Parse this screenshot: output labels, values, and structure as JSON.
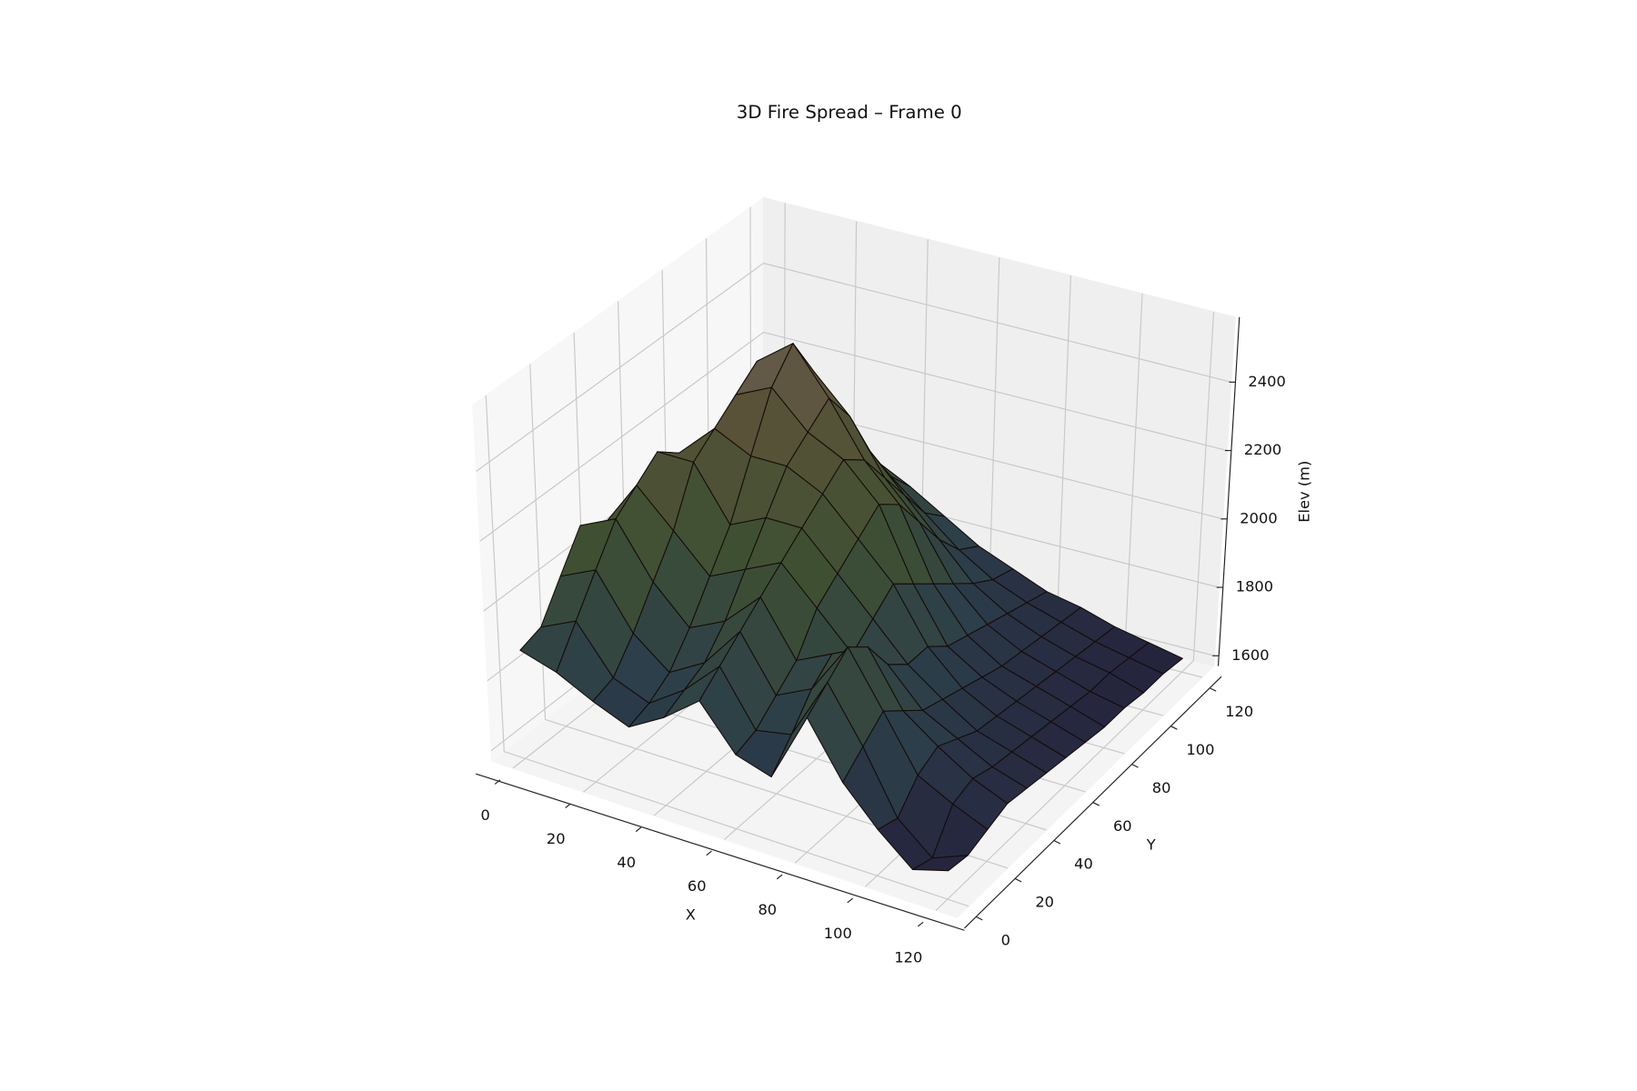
{
  "chart_data": {
    "type": "surface3d",
    "title": "3D Fire Spread – Frame 0",
    "xlabel": "X",
    "ylabel": "Y",
    "zlabel": "Elev (m)",
    "x": [
      0,
      10,
      20,
      30,
      40,
      50,
      60,
      70,
      80,
      90,
      100,
      110,
      120
    ],
    "y": [
      0,
      10,
      20,
      30,
      40,
      50,
      60,
      70,
      80,
      90,
      100,
      110,
      120
    ],
    "z": [
      [
        1880,
        1850,
        1800,
        1760,
        1820,
        1900,
        1780,
        1750,
        1950,
        1800,
        1700,
        1620,
        1650
      ],
      [
        1900,
        1950,
        1820,
        1780,
        1850,
        1950,
        1800,
        1820,
        2000,
        1850,
        1680,
        1600,
        1640
      ],
      [
        2000,
        2050,
        1900,
        1820,
        1880,
        2000,
        1850,
        1900,
        2050,
        1900,
        1750,
        1700,
        1660
      ],
      [
        2100,
        2150,
        2000,
        1900,
        1950,
        2050,
        1900,
        1950,
        2000,
        1850,
        1780,
        1720,
        1680
      ],
      [
        2050,
        2200,
        2100,
        2000,
        2050,
        2100,
        2000,
        1900,
        1900,
        1800,
        1750,
        1700,
        1670
      ],
      [
        2000,
        2250,
        2250,
        2100,
        2150,
        2150,
        2050,
        1950,
        1850,
        1780,
        1720,
        1690,
        1660
      ],
      [
        1950,
        2200,
        2300,
        2250,
        2250,
        2200,
        2100,
        2000,
        1850,
        1760,
        1710,
        1680,
        1650
      ],
      [
        1900,
        2150,
        2350,
        2400,
        2300,
        2250,
        2150,
        1950,
        1800,
        1740,
        1700,
        1670,
        1640
      ],
      [
        1850,
        2100,
        2400,
        2480,
        2350,
        2200,
        2100,
        1900,
        1780,
        1720,
        1690,
        1660,
        1630
      ],
      [
        1800,
        2050,
        2300,
        2350,
        2250,
        2100,
        2000,
        1850,
        1760,
        1710,
        1680,
        1650,
        1630
      ],
      [
        1750,
        1950,
        2150,
        2200,
        2100,
        2000,
        1900,
        1800,
        1740,
        1700,
        1670,
        1650,
        1620
      ],
      [
        1700,
        1850,
        2000,
        2050,
        1980,
        1900,
        1820,
        1760,
        1720,
        1690,
        1660,
        1640,
        1620
      ],
      [
        1680,
        1780,
        1900,
        1950,
        1900,
        1840,
        1780,
        1740,
        1700,
        1680,
        1650,
        1630,
        1610
      ]
    ],
    "xlim": [
      -6,
      126
    ],
    "ylim": [
      -6,
      126
    ],
    "zlim": [
      1570,
      2590
    ],
    "xticks": [
      0,
      20,
      40,
      60,
      80,
      100,
      120
    ],
    "yticks": [
      0,
      20,
      40,
      60,
      80,
      100,
      120
    ],
    "zticks": [
      1600,
      1800,
      2000,
      2200,
      2400
    ],
    "grid": true,
    "colormap": [
      "#231d3a",
      "#2c3f4a",
      "#3f5032",
      "#5a5238",
      "#766a68"
    ],
    "edgecolor": "#140b08"
  }
}
